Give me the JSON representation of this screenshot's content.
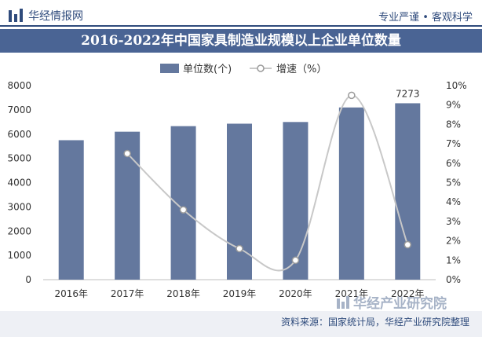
{
  "header": {
    "brand_name": "华经情报网",
    "slogan": "专业严谨 • 客观科学",
    "logo_icon": "bar-chart-logo",
    "accent_color": "#2f4b7c"
  },
  "chart_data": {
    "type": "bar",
    "title": "2016-2022年中国家具制造业规模以上企业单位数量",
    "categories": [
      "2016年",
      "2017年",
      "2018年",
      "2019年",
      "2020年",
      "2021年",
      "2022年"
    ],
    "series": [
      {
        "name": "单位数(个)",
        "type": "bar",
        "axis": "left",
        "color": "#64789e",
        "values": [
          5750,
          6100,
          6330,
          6430,
          6500,
          7100,
          7273
        ]
      },
      {
        "name": "增速（%）",
        "type": "line",
        "axis": "right",
        "color": "#c8c8c8",
        "values": [
          null,
          6.5,
          3.6,
          1.6,
          1.0,
          9.5,
          1.8
        ]
      }
    ],
    "data_labels": [
      {
        "category": "2022年",
        "text": "7273"
      }
    ],
    "y_left": {
      "range": [
        0,
        8000
      ],
      "ticks": [
        "0",
        "1000",
        "2000",
        "3000",
        "4000",
        "5000",
        "6000",
        "7000",
        "8000"
      ]
    },
    "y_right": {
      "range": [
        0,
        10
      ],
      "ticks": [
        "0%",
        "1%",
        "2%",
        "3%",
        "4%",
        "5%",
        "6%",
        "7%",
        "8%",
        "9%",
        "10%"
      ]
    },
    "xlabel": "",
    "ylabel": "",
    "legend": "top-center",
    "grid": false
  },
  "footer": {
    "source": "资料来源：国家统计局，华经产业研究院整理",
    "watermark_brand": "华经产业研究院"
  }
}
